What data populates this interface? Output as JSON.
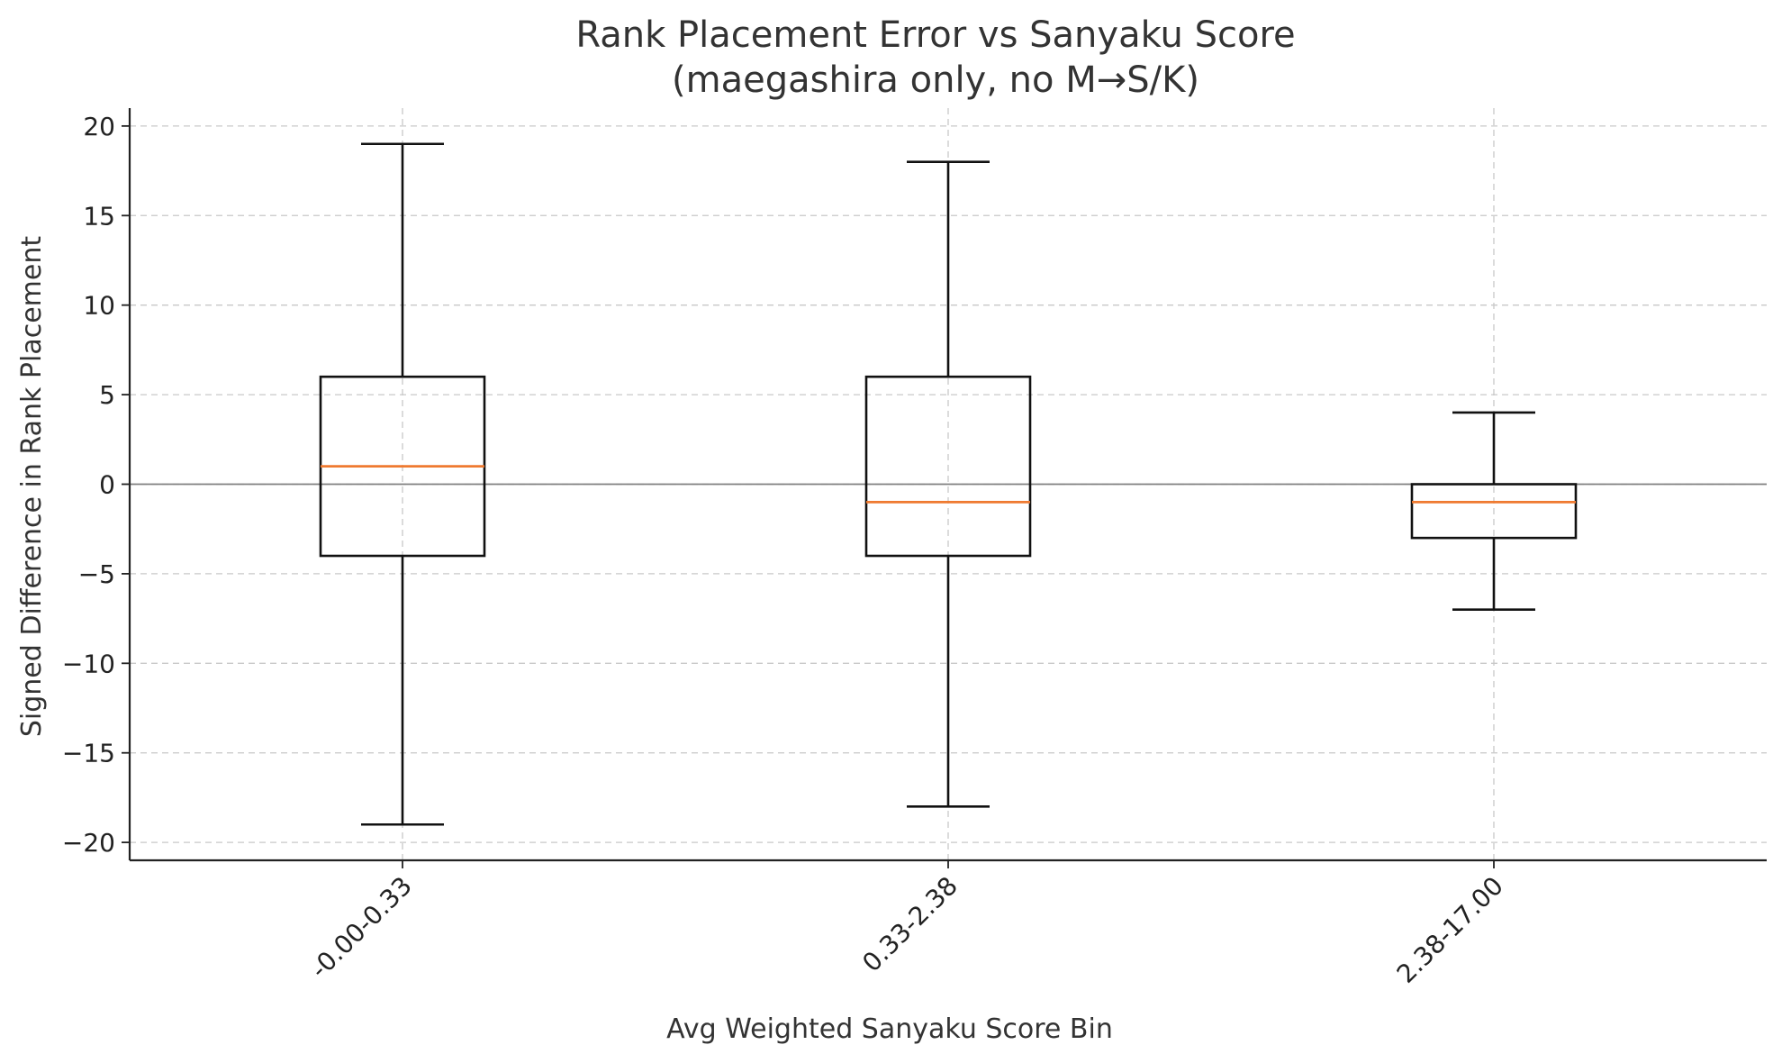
{
  "chart_data": {
    "type": "boxplot",
    "title": "Rank Placement Error vs Sanyaku Score",
    "subtitle": "(maegashira only, no M→S/K)",
    "xlabel": "Avg Weighted Sanyaku Score Bin",
    "ylabel": "Signed Difference in Rank Placement",
    "ylim": [
      -21,
      21
    ],
    "yticks": [
      20,
      15,
      10,
      5,
      0,
      -5,
      -10,
      -15,
      -20
    ],
    "ytick_labels": [
      "20",
      "15",
      "10",
      "5",
      "0",
      "−5",
      "−10",
      "−15",
      "−20"
    ],
    "categories": [
      "-0.00-0.33",
      "0.33-2.38",
      "2.38-17.00"
    ],
    "boxes": [
      {
        "category": "-0.00-0.33",
        "whisker_low": -19,
        "q1": -4,
        "median": 1,
        "q3": 6,
        "whisker_high": 19
      },
      {
        "category": "0.33-2.38",
        "whisker_low": -18,
        "q1": -4,
        "median": -1,
        "q3": 6,
        "whisker_high": 18
      },
      {
        "category": "2.38-17.00",
        "whisker_low": -7,
        "q1": -3,
        "median": -1,
        "q3": 0,
        "whisker_high": 4
      }
    ],
    "reference_line": {
      "y": 0,
      "color": "#808080"
    },
    "grid": true,
    "colors": {
      "box": "#111111",
      "median": "#ef7a30",
      "grid": "#c8c8c8"
    }
  }
}
